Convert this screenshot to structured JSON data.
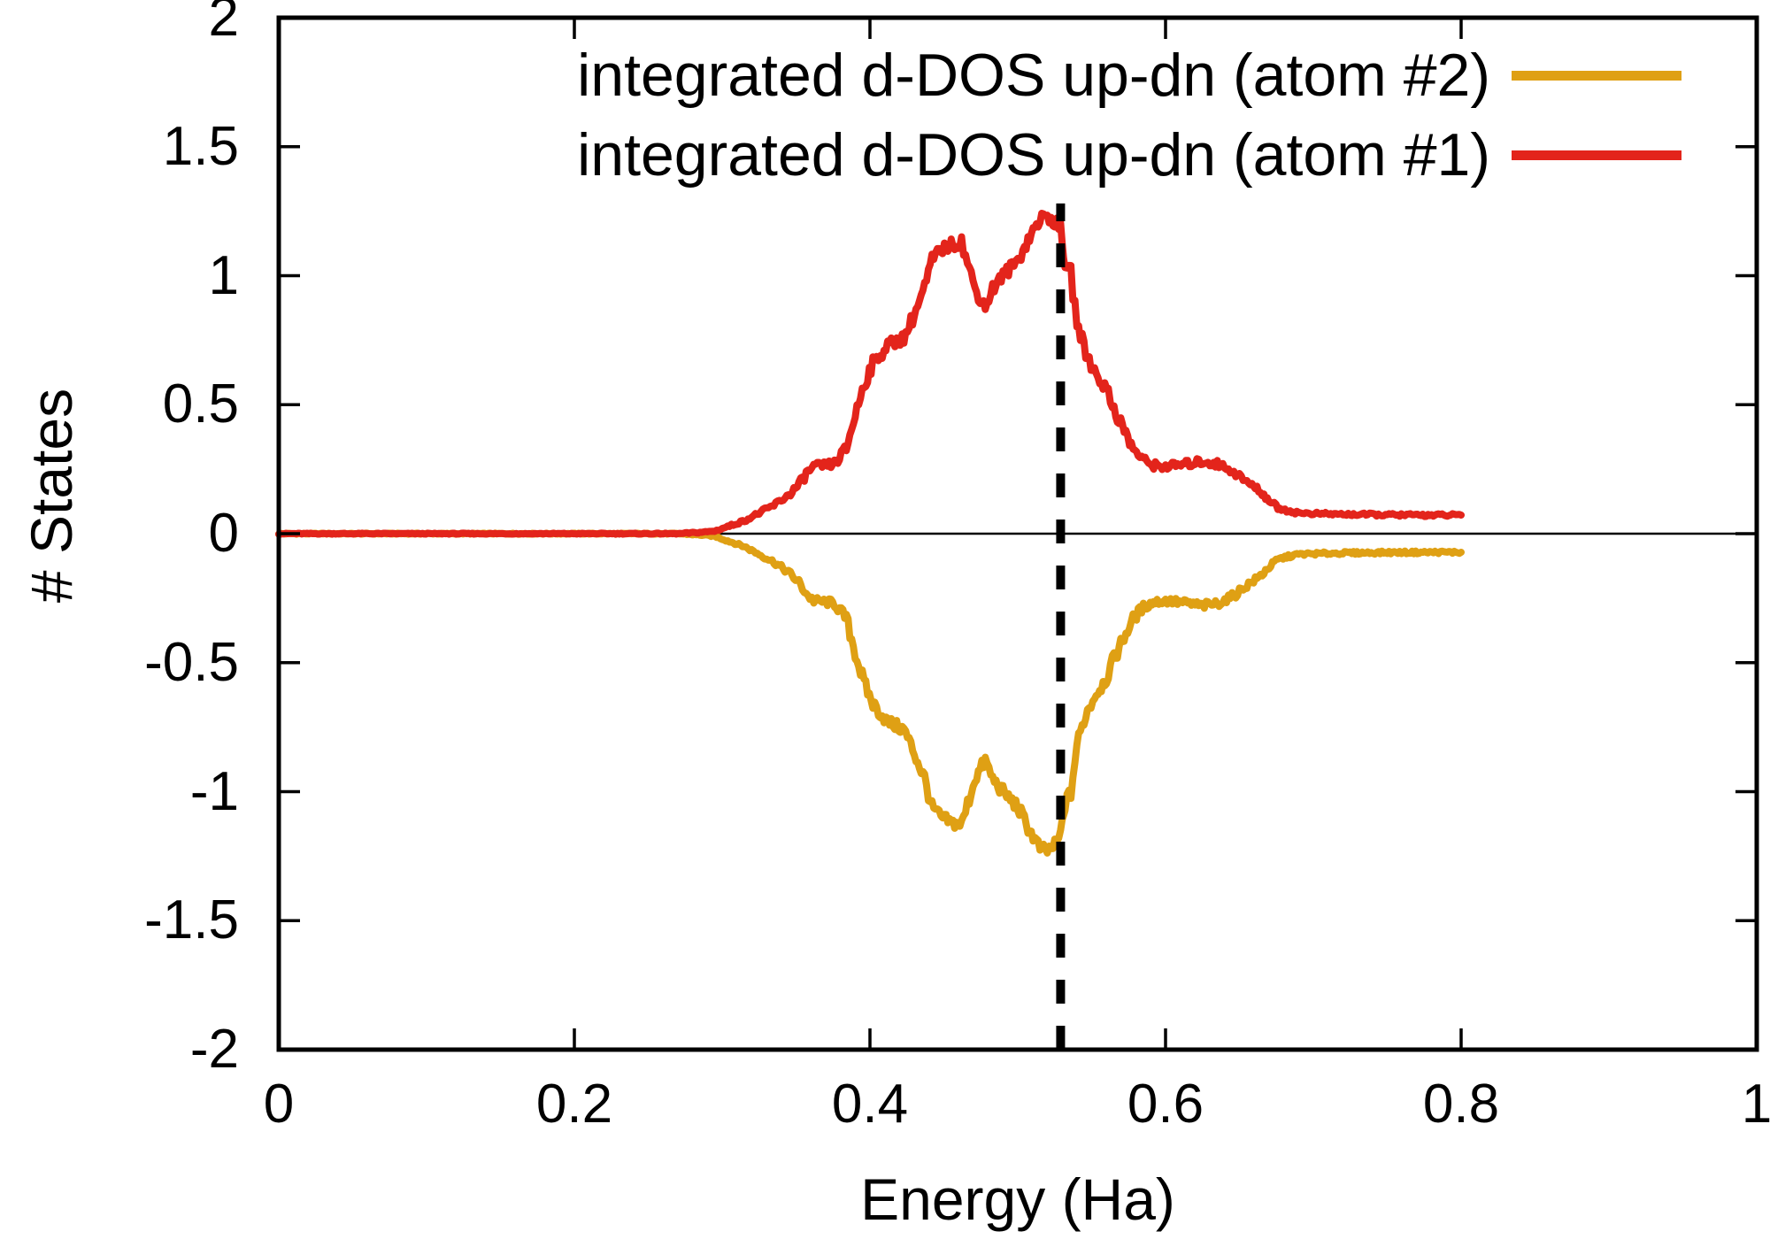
{
  "page": {
    "background": "#ffffff"
  },
  "chart_data": {
    "type": "line",
    "title": "",
    "xlabel": "Energy (Ha)",
    "ylabel": "# States",
    "xlim": [
      0,
      1
    ],
    "ylim": [
      -2,
      2
    ],
    "grid": false,
    "legend_position": "top-right-inside",
    "axis_color": "#000000",
    "background_color": "#ffffff",
    "xtick_values": [
      0,
      0.2,
      0.4,
      0.6,
      0.8,
      1
    ],
    "xtick_labels": [
      "0",
      "0.2",
      "0.4",
      "0.6",
      "0.8",
      "1"
    ],
    "ytick_values": [
      2,
      1.5,
      1,
      0.5,
      0,
      -0.5,
      -1,
      -1.5,
      -2
    ],
    "ytick_labels": [
      "2",
      "1.5",
      "1",
      "0.5",
      "0",
      "-0.5",
      "-1",
      "-1.5",
      "-2"
    ],
    "zero_line": {
      "y": 0,
      "color": "#000000"
    },
    "vline": {
      "x": 0.529,
      "y_from": -2,
      "y_to": 1.28,
      "style": "dashed",
      "color": "#000000"
    },
    "x": [
      0.0,
      0.27,
      0.285,
      0.295,
      0.305,
      0.315,
      0.325,
      0.335,
      0.345,
      0.352,
      0.358,
      0.362,
      0.37,
      0.376,
      0.384,
      0.39,
      0.396,
      0.402,
      0.412,
      0.423,
      0.43,
      0.437,
      0.442,
      0.448,
      0.455,
      0.462,
      0.466,
      0.471,
      0.478,
      0.483,
      0.49,
      0.5,
      0.508,
      0.515,
      0.52,
      0.525,
      0.529,
      0.532,
      0.536,
      0.54,
      0.546,
      0.552,
      0.56,
      0.564,
      0.572,
      0.578,
      0.585,
      0.592,
      0.6,
      0.615,
      0.625,
      0.635,
      0.645,
      0.655,
      0.663,
      0.67,
      0.676,
      0.682,
      0.69,
      0.7,
      0.72,
      0.75,
      0.78,
      0.8
    ],
    "series": [
      {
        "name": "integrated d-DOS up-dn (atom #2)",
        "color": "#DFA014",
        "values": [
          0,
          0,
          -0.005,
          -0.01,
          -0.03,
          -0.05,
          -0.08,
          -0.11,
          -0.15,
          -0.19,
          -0.24,
          -0.26,
          -0.265,
          -0.27,
          -0.33,
          -0.46,
          -0.58,
          -0.66,
          -0.73,
          -0.76,
          -0.85,
          -0.95,
          -1.06,
          -1.1,
          -1.12,
          -1.13,
          -1.05,
          -0.95,
          -0.88,
          -0.95,
          -1.0,
          -1.06,
          -1.15,
          -1.22,
          -1.23,
          -1.21,
          -1.17,
          -1.05,
          -1.0,
          -0.82,
          -0.7,
          -0.63,
          -0.56,
          -0.5,
          -0.4,
          -0.33,
          -0.285,
          -0.265,
          -0.26,
          -0.27,
          -0.28,
          -0.27,
          -0.245,
          -0.2,
          -0.17,
          -0.13,
          -0.1,
          -0.09,
          -0.08,
          -0.078,
          -0.075,
          -0.073,
          -0.072,
          -0.072
        ]
      },
      {
        "name": "integrated d-DOS up-dn (atom #1)",
        "color": "#E3241B",
        "values": [
          0,
          0,
          0.005,
          0.01,
          0.03,
          0.05,
          0.08,
          0.11,
          0.15,
          0.19,
          0.24,
          0.26,
          0.265,
          0.27,
          0.33,
          0.46,
          0.58,
          0.66,
          0.73,
          0.76,
          0.85,
          0.95,
          1.06,
          1.1,
          1.12,
          1.13,
          1.05,
          0.95,
          0.88,
          0.95,
          1.0,
          1.06,
          1.15,
          1.22,
          1.23,
          1.21,
          1.17,
          1.05,
          1.0,
          0.82,
          0.7,
          0.63,
          0.56,
          0.5,
          0.4,
          0.33,
          0.285,
          0.265,
          0.26,
          0.27,
          0.28,
          0.27,
          0.245,
          0.2,
          0.17,
          0.13,
          0.1,
          0.09,
          0.08,
          0.078,
          0.075,
          0.073,
          0.072,
          0.072
        ]
      }
    ]
  }
}
